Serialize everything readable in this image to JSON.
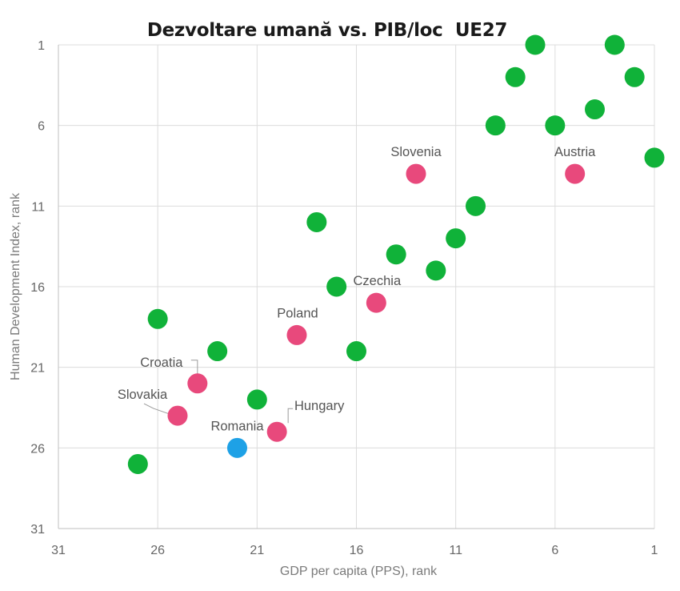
{
  "chart_data": {
    "type": "scatter",
    "title": "Dezvoltare umană vs. PIB/loc  UE27",
    "xlabel": "GDP per capita (PPS), rank",
    "ylabel": "Human Development Index, rank",
    "xlim": [
      31,
      1
    ],
    "ylim": [
      31,
      1
    ],
    "x_reversed": true,
    "y_reversed": true,
    "xticks": [
      "31",
      "26",
      "21",
      "16",
      "11",
      "6",
      "1"
    ],
    "yticks": [
      "1",
      "6",
      "11",
      "16",
      "21",
      "26",
      "31"
    ],
    "grid": true,
    "colors": {
      "green": "#10b239",
      "pink": "#e8497c",
      "blue": "#1ea1e6"
    },
    "points": [
      {
        "x": 7,
        "y": 1,
        "color": "green"
      },
      {
        "x": 3,
        "y": 1,
        "color": "green"
      },
      {
        "x": 8,
        "y": 3,
        "color": "green"
      },
      {
        "x": 2,
        "y": 3,
        "color": "green"
      },
      {
        "x": 4,
        "y": 5,
        "color": "green"
      },
      {
        "x": 9,
        "y": 6,
        "color": "green"
      },
      {
        "x": 6,
        "y": 6,
        "color": "green"
      },
      {
        "x": 1,
        "y": 8,
        "color": "green"
      },
      {
        "x": 13,
        "y": 9,
        "color": "pink",
        "label": "Slovenia"
      },
      {
        "x": 5,
        "y": 9,
        "color": "pink",
        "label": "Austria"
      },
      {
        "x": 10,
        "y": 11,
        "color": "green"
      },
      {
        "x": 18,
        "y": 12,
        "color": "green"
      },
      {
        "x": 11,
        "y": 13,
        "color": "green"
      },
      {
        "x": 14,
        "y": 14,
        "color": "green"
      },
      {
        "x": 12,
        "y": 15,
        "color": "green"
      },
      {
        "x": 17,
        "y": 16,
        "color": "green"
      },
      {
        "x": 15,
        "y": 17,
        "color": "pink",
        "label": "Czechia"
      },
      {
        "x": 26,
        "y": 18,
        "color": "green"
      },
      {
        "x": 19,
        "y": 19,
        "color": "pink",
        "label": "Poland"
      },
      {
        "x": 23,
        "y": 20,
        "color": "green"
      },
      {
        "x": 16,
        "y": 20,
        "color": "green"
      },
      {
        "x": 24,
        "y": 22,
        "color": "pink",
        "label": "Croatia"
      },
      {
        "x": 21,
        "y": 23,
        "color": "green"
      },
      {
        "x": 25,
        "y": 24,
        "color": "pink",
        "label": "Slovakia"
      },
      {
        "x": 20,
        "y": 25,
        "color": "pink",
        "label": "Hungary"
      },
      {
        "x": 22,
        "y": 26,
        "color": "blue",
        "label": "Romania"
      },
      {
        "x": 27,
        "y": 27,
        "color": "green"
      }
    ]
  }
}
